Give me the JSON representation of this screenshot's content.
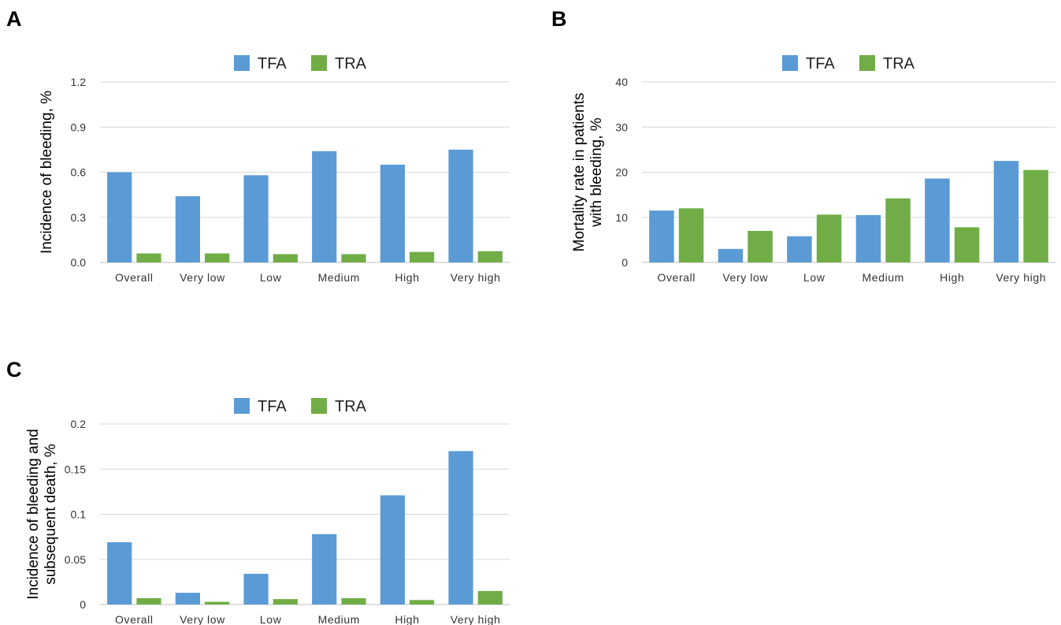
{
  "colors": {
    "tfa": "#5B9BD5",
    "tra": "#70AD47",
    "grid": "#D9D9D9",
    "axis": "#BFBFBF"
  },
  "chart_data": [
    {
      "panel": "A",
      "type": "bar",
      "categories": [
        "Overall",
        "Very low",
        "Low",
        "Medium",
        "High",
        "Very high"
      ],
      "series": [
        {
          "name": "TFA",
          "values": [
            0.6,
            0.44,
            0.58,
            0.74,
            0.65,
            0.75
          ]
        },
        {
          "name": "TRA",
          "values": [
            0.06,
            0.06,
            0.055,
            0.055,
            0.07,
            0.075
          ]
        }
      ],
      "ylabel_lines": [
        "Incidence of bleeding, %"
      ],
      "yticks": [
        "0.0",
        "0.3",
        "0.6",
        "0.9",
        "1.2"
      ],
      "ylim": [
        0,
        1.2
      ],
      "legend_position": "top-center",
      "grid": true
    },
    {
      "panel": "B",
      "type": "bar",
      "categories": [
        "Overall",
        "Very low",
        "Low",
        "Medium",
        "High",
        "Very high"
      ],
      "series": [
        {
          "name": "TFA",
          "values": [
            11.5,
            3.0,
            5.8,
            10.5,
            18.6,
            22.5
          ]
        },
        {
          "name": "TRA",
          "values": [
            12.0,
            7.0,
            10.6,
            14.2,
            7.8,
            20.5
          ]
        }
      ],
      "ylabel_lines": [
        "Mortality rate in patients",
        "with bleeding, %"
      ],
      "yticks": [
        "0",
        "10",
        "20",
        "30",
        "40"
      ],
      "ylim": [
        0,
        40
      ],
      "legend_position": "top-center",
      "grid": true
    },
    {
      "panel": "C",
      "type": "bar",
      "categories": [
        "Overall",
        "Very low",
        "Low",
        "Medium",
        "High",
        "Very high"
      ],
      "series": [
        {
          "name": "TFA",
          "values": [
            0.069,
            0.013,
            0.034,
            0.078,
            0.121,
            0.17
          ]
        },
        {
          "name": "TRA",
          "values": [
            0.007,
            0.003,
            0.006,
            0.007,
            0.005,
            0.015
          ]
        }
      ],
      "ylabel_lines": [
        "Incidence of bleeding and",
        "subsequent death, %"
      ],
      "yticks": [
        "0",
        "0.05",
        "0.1",
        "0.15",
        "0.2"
      ],
      "ylim": [
        0,
        0.2
      ],
      "legend_position": "top-center",
      "grid": true
    }
  ]
}
